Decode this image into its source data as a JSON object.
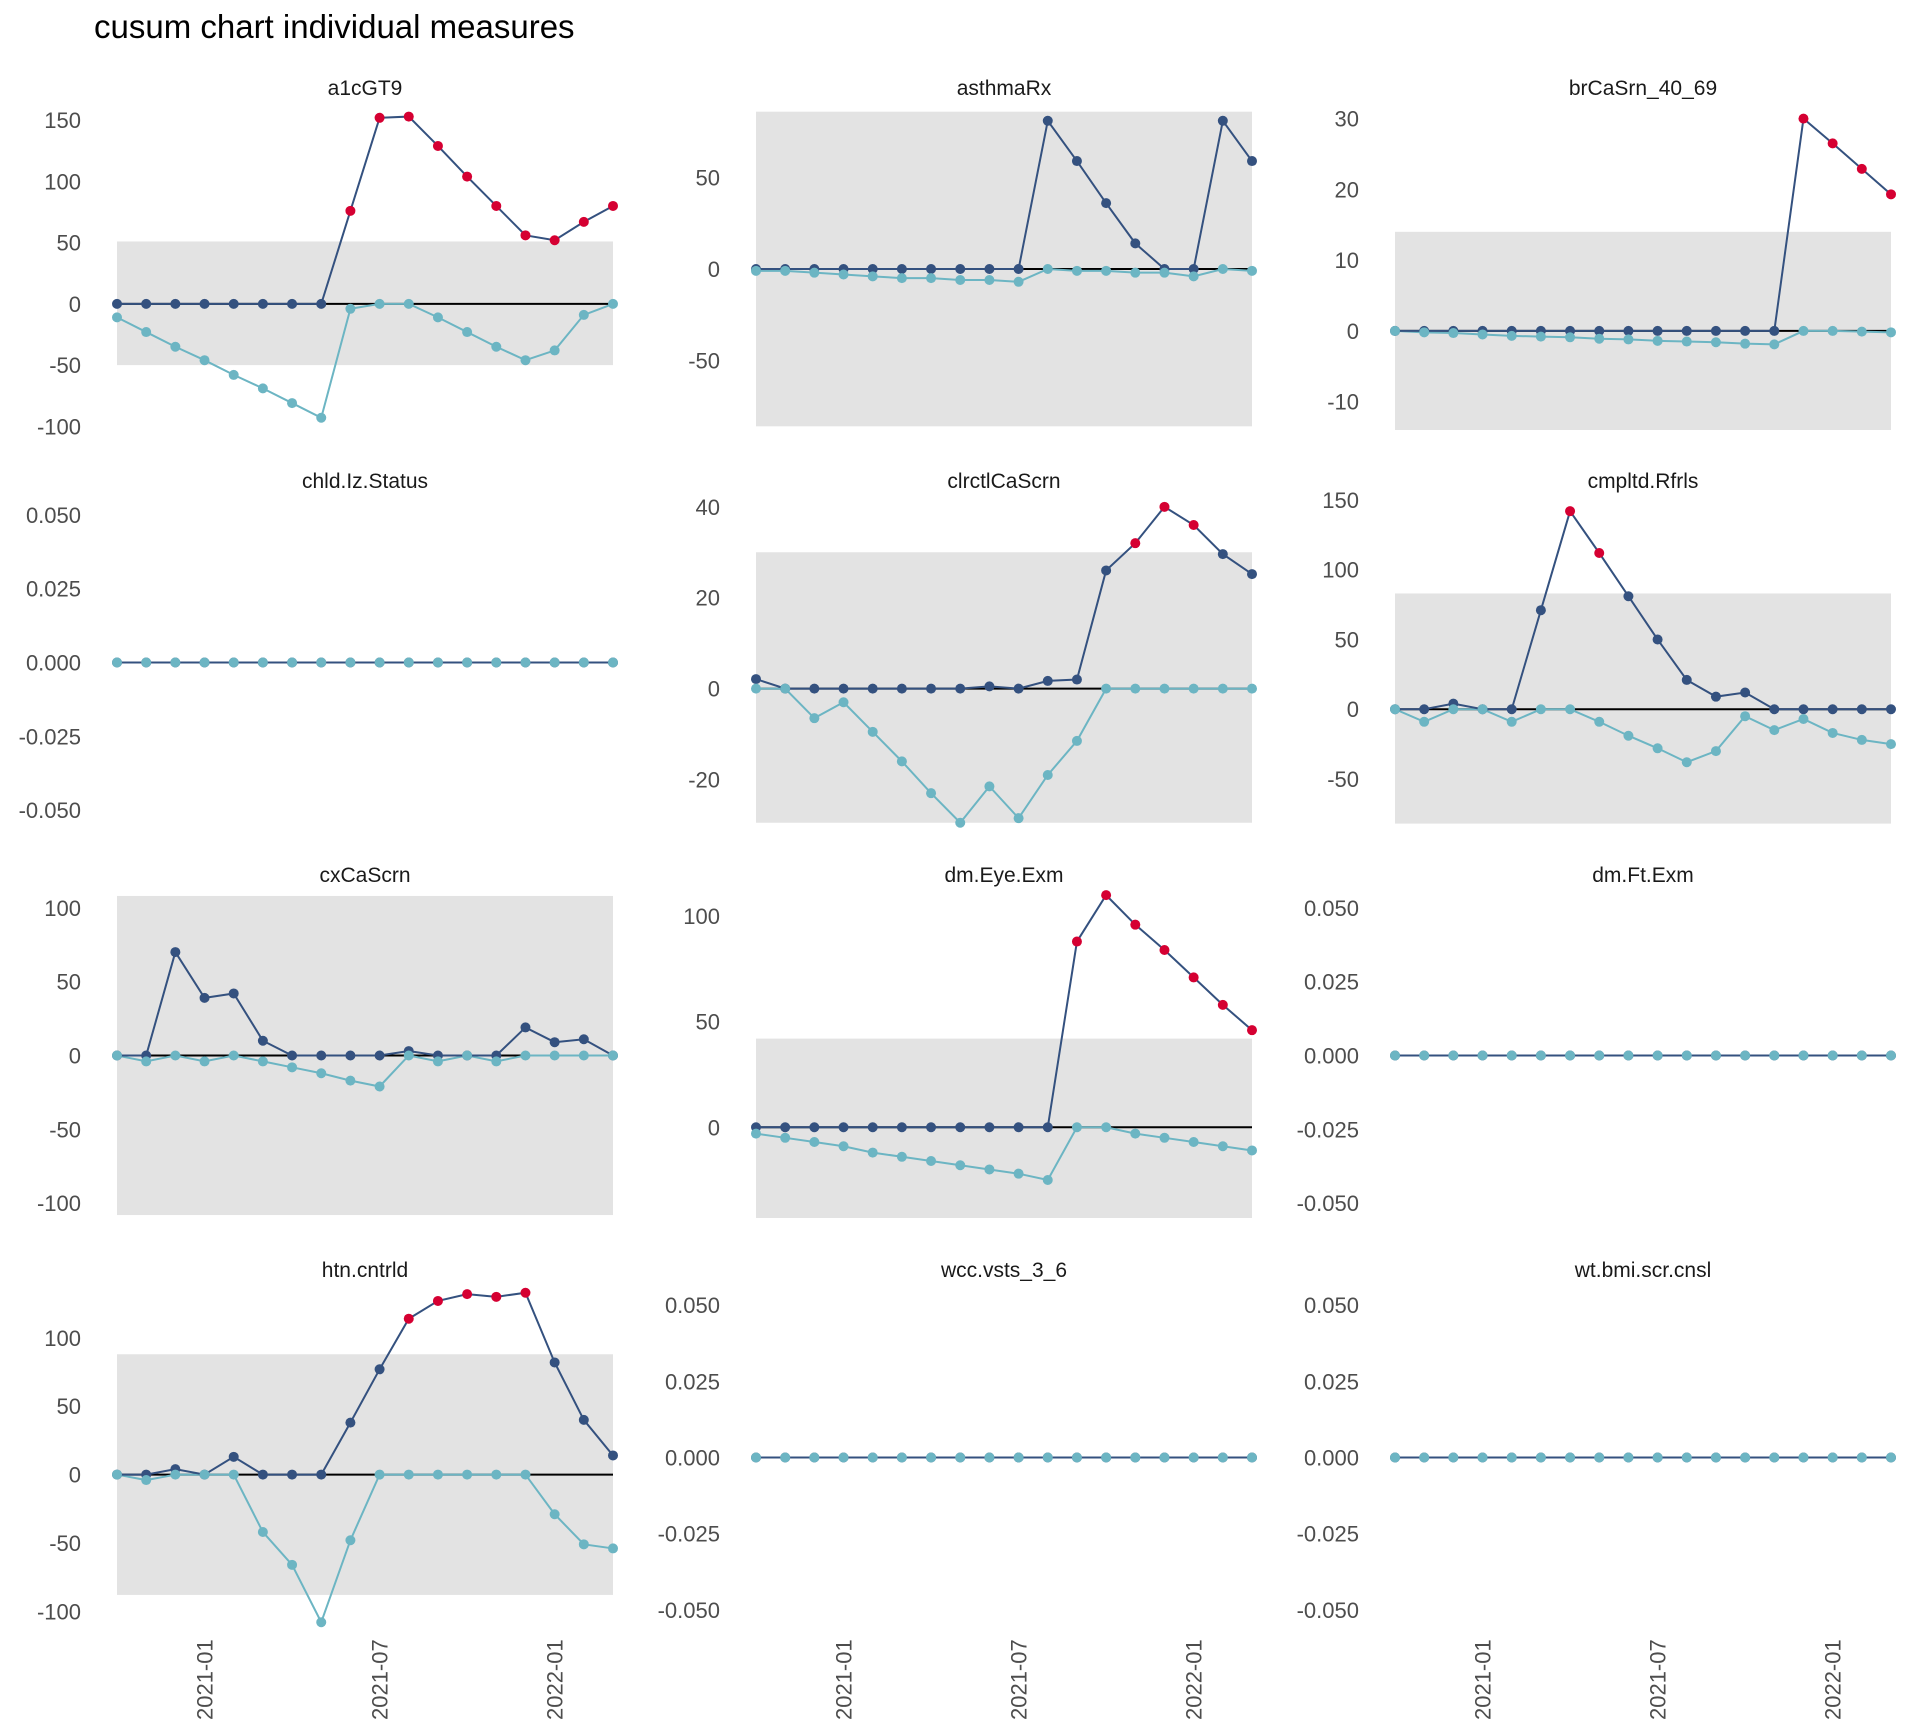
{
  "chart_data": {
    "type": "line",
    "title": "cusum chart  individual measures",
    "x": [
      "2020-10",
      "2020-11",
      "2020-12",
      "2021-01",
      "2021-02",
      "2021-03",
      "2021-04",
      "2021-05",
      "2021-06",
      "2021-07",
      "2021-08",
      "2021-09",
      "2021-10",
      "2021-11",
      "2021-12",
      "2022-01",
      "2022-02",
      "2022-03"
    ],
    "x_tick_labels": [
      "2021-01",
      "2021-07",
      "2022-01"
    ],
    "colors": {
      "upper_line": "#34517F",
      "upper_point": "#34517F",
      "signal_point": "#D50032",
      "lower": "#6CB5C3",
      "band": "#E3E3E3",
      "zero_line": "#000000"
    },
    "legend": "none",
    "grid": false,
    "panels": [
      {
        "name": "a1cGT9",
        "y_ticks": [
          -100,
          -50,
          0,
          50,
          100,
          150
        ],
        "ylim": [
          -103,
          160
        ],
        "band": [
          -50,
          51
        ],
        "upper": [
          0,
          0,
          0,
          0,
          0,
          0,
          0,
          0,
          76,
          152,
          153,
          129,
          104,
          80,
          56,
          52,
          67,
          80
        ],
        "signal": [
          false,
          false,
          false,
          false,
          false,
          false,
          false,
          false,
          true,
          true,
          true,
          true,
          true,
          true,
          true,
          true,
          true,
          true
        ],
        "lower": [
          -11,
          -23,
          -35,
          -46,
          -58,
          -69,
          -81,
          -93,
          -4,
          0,
          0,
          -11,
          -23,
          -35,
          -46,
          -38,
          -9,
          0
        ]
      },
      {
        "name": "asthmaRx",
        "y_ticks": [
          -50,
          0,
          50
        ],
        "ylim": [
          -88,
          88
        ],
        "band": [
          -86,
          86
        ],
        "upper": [
          0,
          0,
          0,
          0,
          0,
          0,
          0,
          0,
          0,
          0,
          81,
          59,
          36,
          14,
          0,
          0,
          81,
          59
        ],
        "signal": [
          false,
          false,
          false,
          false,
          false,
          false,
          false,
          false,
          false,
          false,
          false,
          false,
          false,
          false,
          false,
          false,
          false,
          false
        ],
        "lower": [
          -1,
          -1,
          -2,
          -3,
          -4,
          -5,
          -5,
          -6,
          -6,
          -7,
          0,
          -1,
          -1,
          -2,
          -2,
          -4,
          0,
          -1
        ]
      },
      {
        "name": "brCaSrn_40_69",
        "y_ticks": [
          -10,
          0,
          10,
          20,
          30
        ],
        "ylim": [
          -14,
          31.5
        ],
        "band": [
          -14,
          14
        ],
        "upper": [
          0,
          0,
          0,
          0,
          0,
          0,
          0,
          0,
          0,
          0,
          0,
          0,
          0,
          0,
          30,
          26.5,
          22.9,
          19.3
        ],
        "signal": [
          false,
          false,
          false,
          false,
          false,
          false,
          false,
          false,
          false,
          false,
          false,
          false,
          false,
          false,
          true,
          true,
          true,
          true
        ],
        "lower": [
          0,
          -0.2,
          -0.3,
          -0.5,
          -0.7,
          -0.8,
          -0.9,
          -1.1,
          -1.2,
          -1.4,
          -1.5,
          -1.6,
          -1.8,
          -1.9,
          0,
          0,
          -0.1,
          -0.2
        ]
      },
      {
        "name": "chld.Iz.Status",
        "y_ticks": [
          -0.05,
          -0.025,
          0,
          0.025,
          0.05
        ],
        "y_tick_labels": [
          "-0.050",
          "-0.025",
          "0.000",
          "0.025",
          "0.050"
        ],
        "ylim": [
          -0.055,
          0.055
        ],
        "band": null,
        "upper": [
          0,
          0,
          0,
          0,
          0,
          0,
          0,
          0,
          0,
          0,
          0,
          0,
          0,
          0,
          0,
          0,
          0,
          0
        ],
        "signal": [
          false,
          false,
          false,
          false,
          false,
          false,
          false,
          false,
          false,
          false,
          false,
          false,
          false,
          false,
          false,
          false,
          false,
          false
        ],
        "lower": [
          0,
          0,
          0,
          0,
          0,
          0,
          0,
          0,
          0,
          0,
          0,
          0,
          0,
          0,
          0,
          0,
          0,
          0
        ]
      },
      {
        "name": "clrctlCaScrn",
        "y_ticks": [
          -20,
          0,
          20,
          40
        ],
        "ylim": [
          -30,
          41.5
        ],
        "band": [
          -29.5,
          30
        ],
        "upper": [
          2.1,
          0,
          0,
          0,
          0,
          0,
          0,
          0,
          0.5,
          0,
          1.7,
          2,
          26,
          32,
          40,
          36,
          29.6,
          25.2
        ],
        "signal": [
          false,
          false,
          false,
          false,
          false,
          false,
          false,
          false,
          false,
          false,
          false,
          false,
          false,
          true,
          true,
          true,
          false,
          false
        ],
        "lower": [
          0,
          0,
          -6.5,
          -3,
          -9.5,
          -16,
          -23,
          -29.5,
          -21.5,
          -28.5,
          -19,
          -11.5,
          0,
          0,
          0,
          0,
          0,
          0
        ]
      },
      {
        "name": "cmpltd.Rfrls",
        "y_ticks": [
          -50,
          0,
          50,
          100,
          150
        ],
        "ylim": [
          -83,
          150
        ],
        "band": [
          -82,
          83
        ],
        "upper": [
          0,
          0,
          4,
          0,
          0,
          71,
          142,
          112,
          81,
          50,
          21,
          9,
          12,
          0,
          0,
          0,
          0,
          0
        ],
        "signal": [
          false,
          false,
          false,
          false,
          false,
          false,
          true,
          true,
          false,
          false,
          false,
          false,
          false,
          false,
          false,
          false,
          false,
          false
        ],
        "lower": [
          0,
          -9,
          0,
          0,
          -9,
          0,
          0,
          -9,
          -19,
          -28,
          -38,
          -30,
          -5,
          -15,
          -7,
          -17,
          -22,
          -25
        ]
      },
      {
        "name": "cxCaScrn",
        "y_ticks": [
          -100,
          -50,
          0,
          50,
          100
        ],
        "ylim": [
          -110,
          110
        ],
        "band": [
          -108,
          108
        ],
        "upper": [
          0,
          0,
          70,
          39,
          42,
          10,
          0,
          0,
          0,
          0,
          3,
          0,
          0,
          0,
          19,
          9,
          11,
          0
        ],
        "signal": [
          false,
          false,
          false,
          false,
          false,
          false,
          false,
          false,
          false,
          false,
          false,
          false,
          false,
          false,
          false,
          false,
          false,
          false
        ],
        "lower": [
          0,
          -4,
          0,
          -4,
          0,
          -4,
          -8,
          -12,
          -17,
          -21,
          0,
          -4,
          0,
          -4,
          0,
          0,
          0,
          0
        ]
      },
      {
        "name": "dm.Eye.Exm",
        "y_ticks": [
          0,
          50,
          100
        ],
        "ylim": [
          -43,
          111
        ],
        "band": [
          -43,
          42
        ],
        "upper": [
          0,
          0,
          0,
          0,
          0,
          0,
          0,
          0,
          0,
          0,
          0,
          88,
          110,
          96,
          84,
          71,
          58,
          46
        ],
        "signal": [
          false,
          false,
          false,
          false,
          false,
          false,
          false,
          false,
          false,
          false,
          false,
          true,
          true,
          true,
          true,
          true,
          true,
          true
        ],
        "lower": [
          -3,
          -5,
          -7,
          -9,
          -12,
          -14,
          -16,
          -18,
          -20,
          -22,
          -25,
          0,
          0,
          -3,
          -5,
          -7,
          -9,
          -11
        ]
      },
      {
        "name": "dm.Ft.Exm",
        "y_ticks": [
          -0.05,
          -0.025,
          0,
          0.025,
          0.05
        ],
        "y_tick_labels": [
          "-0.050",
          "-0.025",
          "0.000",
          "0.025",
          "0.050"
        ],
        "ylim": [
          -0.055,
          0.055
        ],
        "band": null,
        "upper": [
          0,
          0,
          0,
          0,
          0,
          0,
          0,
          0,
          0,
          0,
          0,
          0,
          0,
          0,
          0,
          0,
          0,
          0
        ],
        "signal": [
          false,
          false,
          false,
          false,
          false,
          false,
          false,
          false,
          false,
          false,
          false,
          false,
          false,
          false,
          false,
          false,
          false,
          false
        ],
        "lower": [
          0,
          0,
          0,
          0,
          0,
          0,
          0,
          0,
          0,
          0,
          0,
          0,
          0,
          0,
          0,
          0,
          0,
          0
        ]
      },
      {
        "name": "htn.cntrld",
        "y_ticks": [
          -100,
          -50,
          0,
          50,
          100
        ],
        "ylim": [
          -110,
          135
        ],
        "band": [
          -88,
          88
        ],
        "upper": [
          0,
          0,
          4,
          0,
          13,
          0,
          0,
          0,
          38,
          77,
          114,
          127,
          132,
          130,
          133,
          82,
          40,
          14
        ],
        "signal": [
          false,
          false,
          false,
          false,
          false,
          false,
          false,
          false,
          false,
          false,
          true,
          true,
          true,
          true,
          true,
          false,
          false,
          false
        ],
        "lower": [
          0,
          -4,
          0,
          0,
          0,
          -42,
          -66,
          -108,
          -48,
          0,
          0,
          0,
          0,
          0,
          0,
          -29,
          -51,
          -54
        ]
      },
      {
        "name": "wcc.vsts_3_6",
        "y_ticks": [
          -0.05,
          -0.025,
          0,
          0.025,
          0.05
        ],
        "y_tick_labels": [
          "-0.050",
          "-0.025",
          "0.000",
          "0.025",
          "0.050"
        ],
        "ylim": [
          -0.055,
          0.055
        ],
        "band": null,
        "upper": [
          0,
          0,
          0,
          0,
          0,
          0,
          0,
          0,
          0,
          0,
          0,
          0,
          0,
          0,
          0,
          0,
          0,
          0
        ],
        "signal": [
          false,
          false,
          false,
          false,
          false,
          false,
          false,
          false,
          false,
          false,
          false,
          false,
          false,
          false,
          false,
          false,
          false,
          false
        ],
        "lower": [
          0,
          0,
          0,
          0,
          0,
          0,
          0,
          0,
          0,
          0,
          0,
          0,
          0,
          0,
          0,
          0,
          0,
          0
        ]
      },
      {
        "name": "wt.bmi.scr.cnsl",
        "y_ticks": [
          -0.05,
          -0.025,
          0,
          0.025,
          0.05
        ],
        "y_tick_labels": [
          "-0.050",
          "-0.025",
          "0.000",
          "0.025",
          "0.050"
        ],
        "ylim": [
          -0.055,
          0.055
        ],
        "band": null,
        "upper": [
          0,
          0,
          0,
          0,
          0,
          0,
          0,
          0,
          0,
          0,
          0,
          0,
          0,
          0,
          0,
          0,
          0,
          0
        ],
        "signal": [
          false,
          false,
          false,
          false,
          false,
          false,
          false,
          false,
          false,
          false,
          false,
          false,
          false,
          false,
          false,
          false,
          false,
          false
        ],
        "lower": [
          0,
          0,
          0,
          0,
          0,
          0,
          0,
          0,
          0,
          0,
          0,
          0,
          0,
          0,
          0,
          0,
          0,
          0
        ]
      }
    ]
  }
}
